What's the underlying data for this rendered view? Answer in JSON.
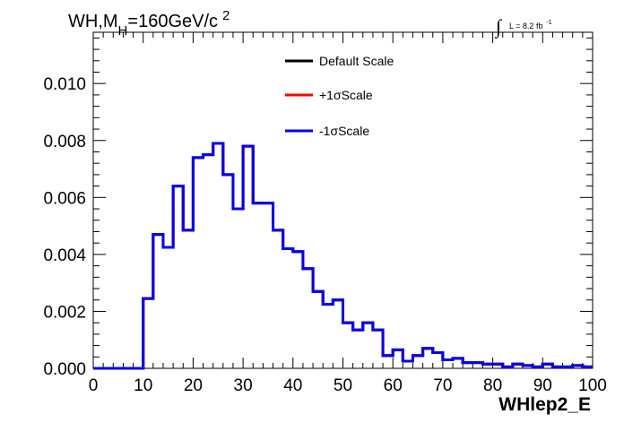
{
  "title": {
    "main": "WH,M",
    "subscript": "H",
    "rest": "=160GeV/c",
    "superscript": "2"
  },
  "luminosity": {
    "symbol": "∫",
    "text": "L = 8.2 fb",
    "superscript": "-1"
  },
  "chart_data": {
    "type": "step-histogram",
    "xlabel": "WHlep2_E",
    "ylabel": "",
    "xlim": [
      0,
      100
    ],
    "ylim": [
      0,
      0.0118
    ],
    "x_ticks": [
      "0",
      "10",
      "20",
      "30",
      "40",
      "50",
      "60",
      "70",
      "80",
      "90",
      "100"
    ],
    "y_ticks": [
      "0.000",
      "0.002",
      "0.004",
      "0.006",
      "0.008",
      "0.010"
    ],
    "bin_width": 2,
    "bin_edges_start": 0,
    "series": [
      {
        "name": "Default Scale",
        "color": "#000000",
        "values": [
          0,
          0,
          0,
          0,
          0,
          0.00245,
          0.0047,
          0.00425,
          0.0064,
          0.00485,
          0.0074,
          0.0075,
          0.0079,
          0.0068,
          0.0056,
          0.0078,
          0.0058,
          0.0058,
          0.00485,
          0.0042,
          0.0041,
          0.0035,
          0.0027,
          0.00225,
          0.0024,
          0.0016,
          0.00135,
          0.0016,
          0.00135,
          0.00045,
          0.00065,
          0.00025,
          0.00045,
          0.0007,
          0.00055,
          0.0003,
          0.00035,
          0.0002,
          0.0002,
          0.00015,
          0.00015,
          5e-05,
          0.00015,
          0.0001,
          5e-05,
          0.00015,
          5e-05,
          5e-05,
          0.0001,
          5e-05
        ]
      },
      {
        "name": "+1σScale",
        "color": "#ff0000",
        "values": [
          0,
          0,
          0,
          0,
          0,
          0.00245,
          0.0047,
          0.00425,
          0.0064,
          0.00485,
          0.0074,
          0.0075,
          0.0079,
          0.0068,
          0.0056,
          0.0078,
          0.0058,
          0.0058,
          0.00485,
          0.0042,
          0.0041,
          0.0035,
          0.0027,
          0.00225,
          0.0024,
          0.0016,
          0.00135,
          0.0016,
          0.00135,
          0.00045,
          0.00065,
          0.00025,
          0.00045,
          0.0007,
          0.00055,
          0.0003,
          0.00035,
          0.0002,
          0.0002,
          0.00015,
          0.00015,
          5e-05,
          0.00015,
          0.0001,
          5e-05,
          0.00015,
          5e-05,
          5e-05,
          0.0001,
          5e-05
        ]
      },
      {
        "name": "-1σScale",
        "color": "#0000ee",
        "values": [
          0,
          0,
          0,
          0,
          0,
          0.00245,
          0.0047,
          0.00425,
          0.0064,
          0.00485,
          0.0074,
          0.0075,
          0.0079,
          0.0068,
          0.0056,
          0.0078,
          0.0058,
          0.0058,
          0.00485,
          0.0042,
          0.0041,
          0.0035,
          0.0027,
          0.00225,
          0.0024,
          0.0016,
          0.00135,
          0.0016,
          0.00135,
          0.00045,
          0.00065,
          0.00025,
          0.00045,
          0.0007,
          0.00055,
          0.0003,
          0.00035,
          0.0002,
          0.0002,
          0.00015,
          0.00015,
          5e-05,
          0.00015,
          0.0001,
          5e-05,
          0.00015,
          5e-05,
          5e-05,
          0.0001,
          5e-05
        ]
      }
    ],
    "legend": {
      "placement": "top-center",
      "entries": [
        "Default Scale",
        "+1σScale",
        "-1σScale"
      ]
    },
    "grid": false
  }
}
